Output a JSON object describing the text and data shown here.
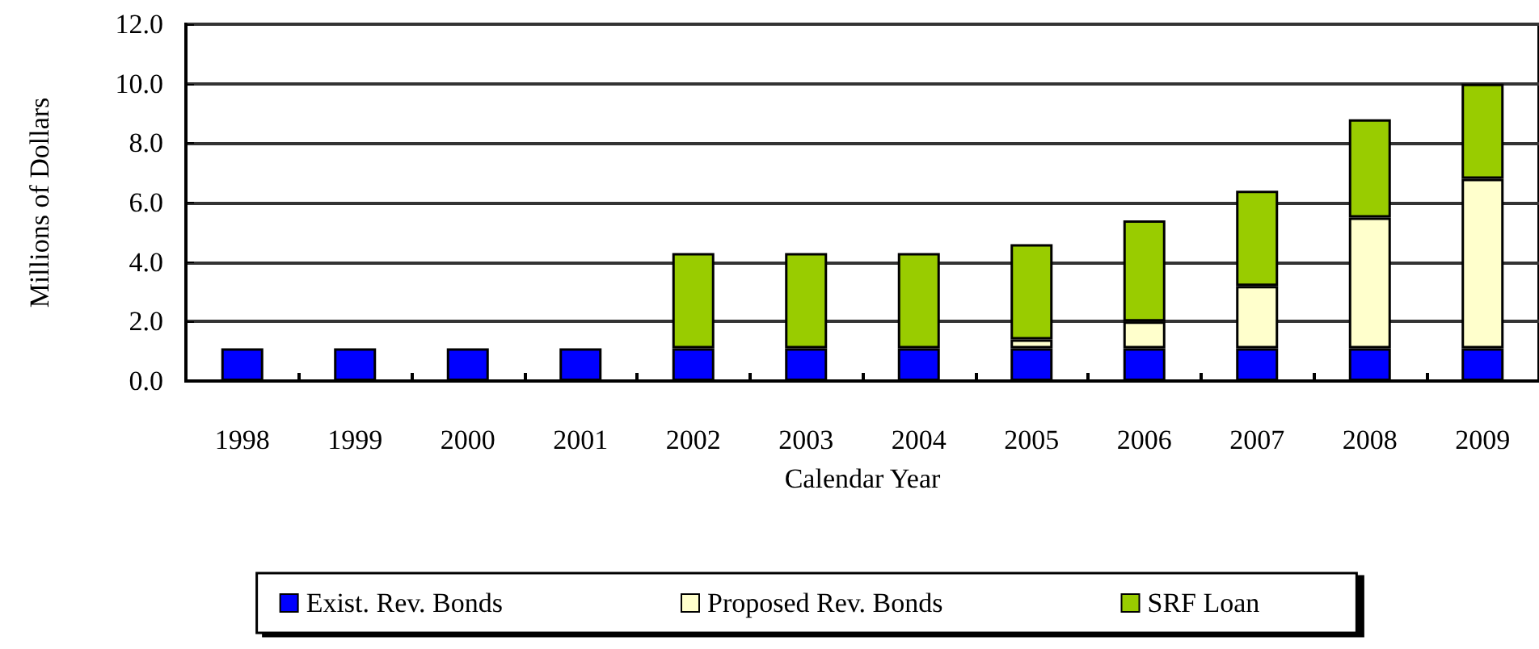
{
  "chart_data": {
    "type": "bar",
    "stacked": true,
    "xlabel": "Calendar Year",
    "ylabel": "Millions of Dollars",
    "categories": [
      "1998",
      "1999",
      "2000",
      "2001",
      "2002",
      "2003",
      "2004",
      "2005",
      "2006",
      "2007",
      "2008",
      "2009"
    ],
    "series": [
      {
        "name": "Exist. Rev. Bonds",
        "color": "#0000ff",
        "values": [
          1.1,
          1.1,
          1.1,
          1.1,
          1.1,
          1.1,
          1.1,
          1.1,
          1.1,
          1.1,
          1.1,
          1.1
        ]
      },
      {
        "name": "Proposed Rev. Bonds",
        "color": "#ffffcc",
        "values": [
          null,
          null,
          null,
          null,
          null,
          null,
          null,
          0.3,
          0.9,
          2.1,
          4.4,
          5.7
        ]
      },
      {
        "name": "SRF Loan",
        "color": "#99cc00",
        "values": [
          null,
          null,
          null,
          null,
          3.2,
          3.2,
          3.2,
          3.2,
          3.4,
          3.2,
          3.3,
          3.2
        ]
      }
    ],
    "ylim": [
      0,
      12
    ],
    "yticks": [
      {
        "value": 0,
        "label": "0.0"
      },
      {
        "value": 2,
        "label": "2.0"
      },
      {
        "value": 4,
        "label": "4.0"
      },
      {
        "value": 6,
        "label": "6.0"
      },
      {
        "value": 8,
        "label": "8.0"
      },
      {
        "value": 10,
        "label": "10.0"
      },
      {
        "value": 12,
        "label": "12.0"
      }
    ],
    "grid": "y",
    "legend": "bottom"
  }
}
